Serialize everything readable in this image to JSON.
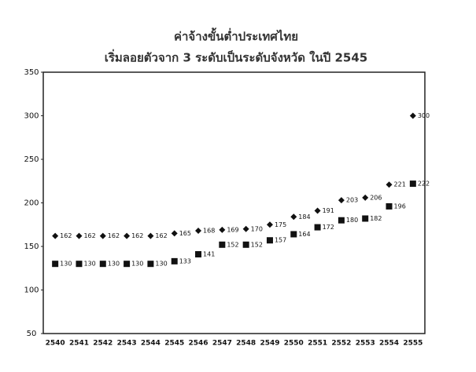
{
  "chart_data": {
    "type": "dot",
    "title": "ค่าจ้างขั้นต่ำประเทศไทย",
    "subtitle": "เริ่มลอยตัวจาก 3 ระดับเป็นระดับจังหวัด ในปี 2545",
    "categories": [
      "2540",
      "2541",
      "2542",
      "2543",
      "2544",
      "2545",
      "2546",
      "2547",
      "2548",
      "2549",
      "2550",
      "2551",
      "2552",
      "2553",
      "2554",
      "2555"
    ],
    "series": [
      {
        "color": "#111111",
        "marker": "diamond",
        "values": [
          162,
          162,
          162,
          162,
          162,
          165,
          168,
          169,
          170,
          175,
          184,
          191,
          203,
          206,
          221,
          300
        ]
      },
      {
        "color": "#111111",
        "marker": "square",
        "values": [
          130,
          130,
          130,
          130,
          130,
          133,
          141,
          152,
          152,
          157,
          164,
          172,
          180,
          182,
          196,
          222
        ]
      }
    ],
    "ylim": [
      50,
      350
    ],
    "yticks": [
      50,
      100,
      150,
      200,
      250,
      300,
      350
    ],
    "grid": false
  }
}
